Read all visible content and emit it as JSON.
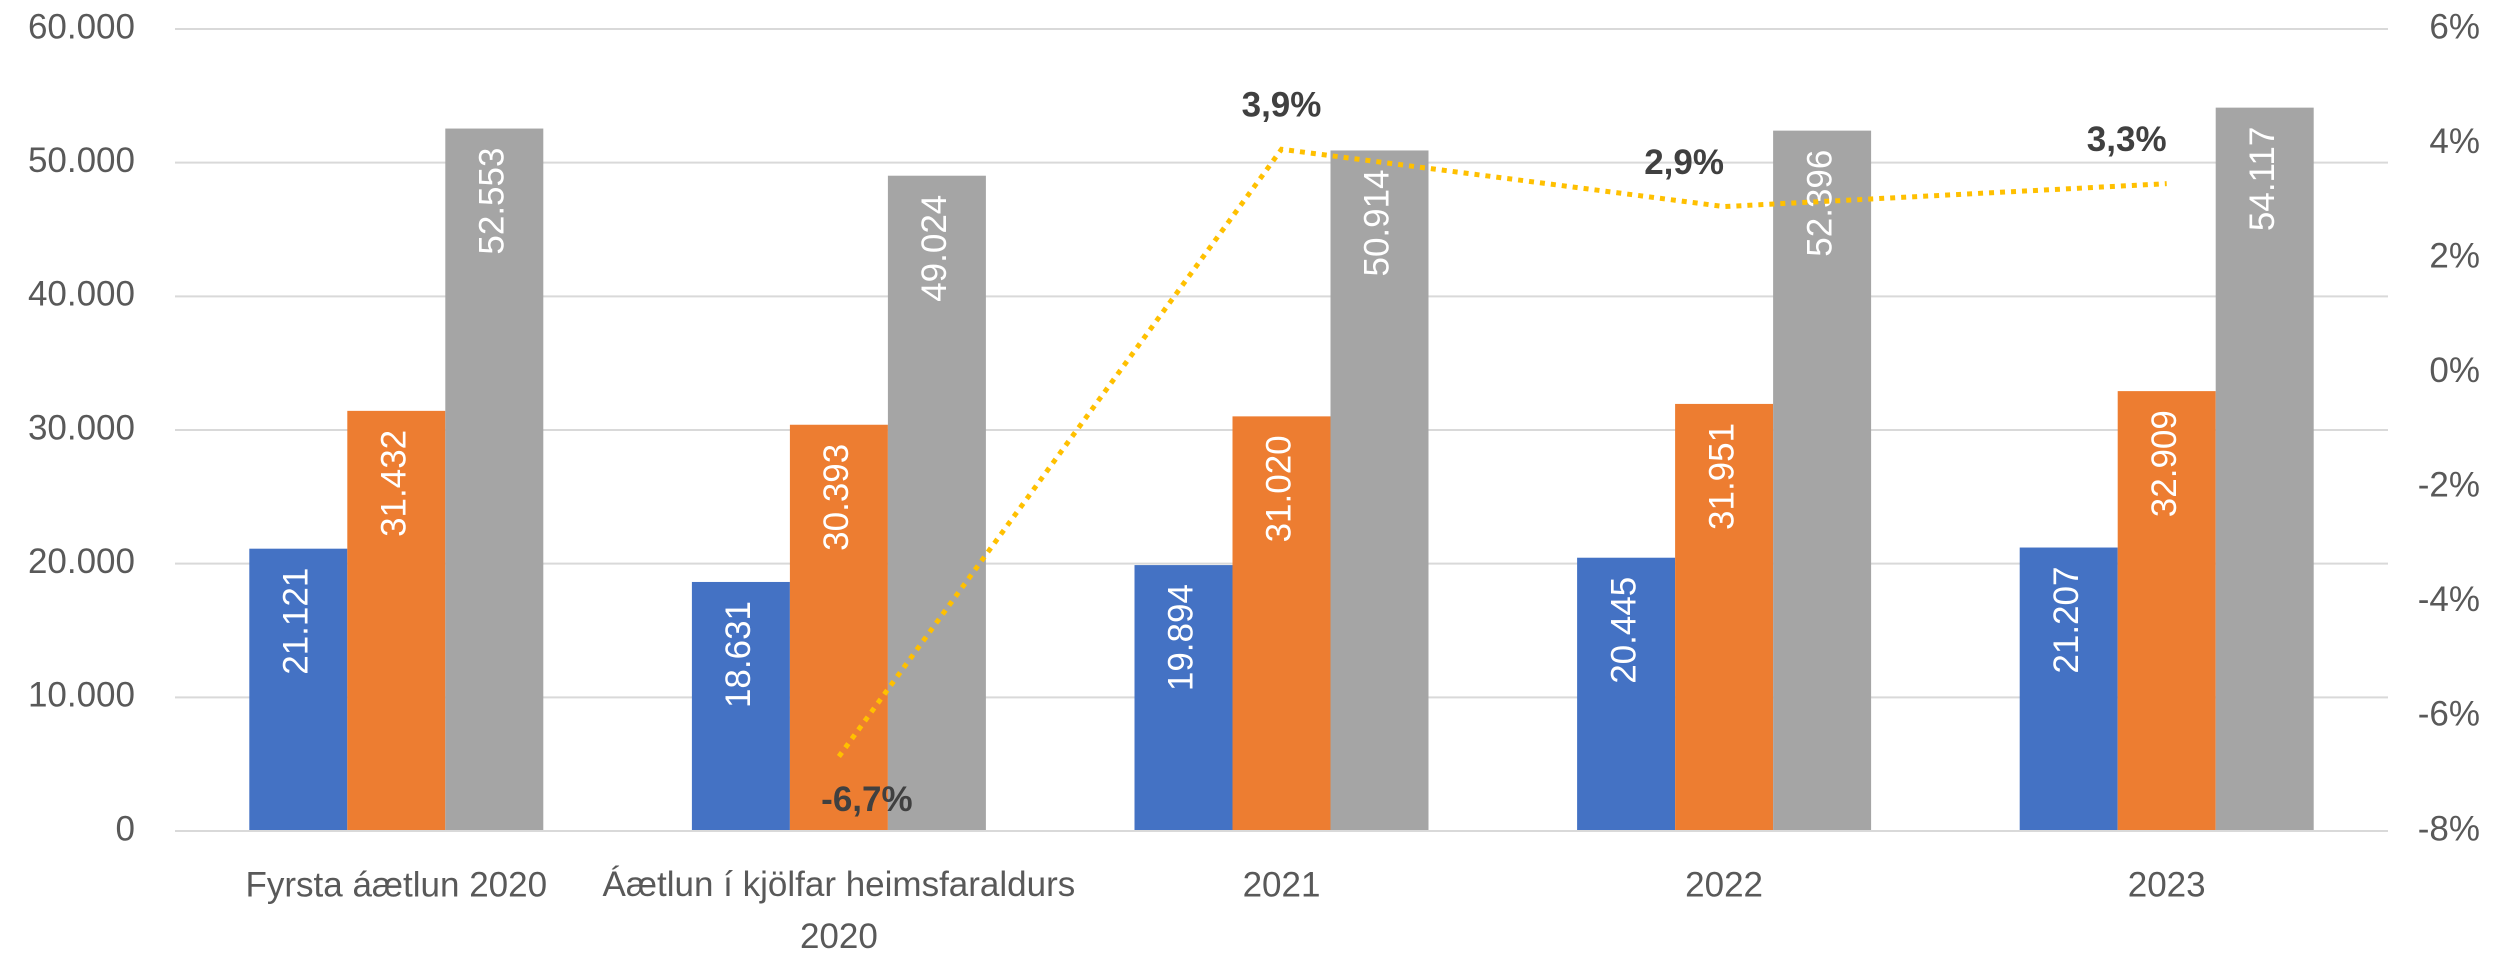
{
  "chart_data": {
    "type": "bar",
    "categories": [
      "Fyrsta áætlun 2020",
      "Áætlun í kjölfar heimsfaraldurs 2020",
      "2021",
      "2022",
      "2023"
    ],
    "series": [
      {
        "color": "#4472c4",
        "values": [
          21121,
          18631,
          19894,
          20445,
          21207
        ],
        "value_labels": [
          "21.121",
          "18.631",
          "19.894",
          "20.445",
          "21.207"
        ]
      },
      {
        "color": "#ed7d31",
        "values": [
          31432,
          30393,
          31020,
          31951,
          32909
        ],
        "value_labels": [
          "31.432",
          "30.393",
          "31.020",
          "31.951",
          "32.909"
        ]
      },
      {
        "color": "#a5a5a5",
        "values": [
          52553,
          49024,
          50914,
          52396,
          54117
        ],
        "value_labels": [
          "52.553",
          "49.024",
          "50.914",
          "52.396",
          "54.117"
        ]
      },
      {
        "type": "line",
        "axis": "y2",
        "color": "#ffc000",
        "values": [
          null,
          -6.7,
          3.9,
          2.9,
          3.3
        ],
        "value_labels": [
          null,
          "-6,7%",
          "3,9%",
          "2,9%",
          "3,3%"
        ]
      }
    ],
    "ylim": [
      0,
      60000
    ],
    "yticks": [
      0,
      {
        "value": 10000,
        "label": "10.000"
      },
      {
        "value": 20000,
        "label": "20.000"
      },
      {
        "value": 30000,
        "label": "30.000"
      },
      {
        "value": 40000,
        "label": "40.000"
      },
      {
        "value": 50000,
        "label": "50.000"
      },
      {
        "value": 60000,
        "label": "60.000"
      }
    ],
    "y2lim": [
      -8,
      6
    ],
    "y2ticks": [
      {
        "value": -8,
        "label": "-8%"
      },
      {
        "value": -6,
        "label": "-6%"
      },
      {
        "value": -4,
        "label": "-4%"
      },
      {
        "value": -2,
        "label": "-2%"
      },
      {
        "value": 0,
        "label": "0%"
      },
      {
        "value": 2,
        "label": "2%"
      },
      {
        "value": 4,
        "label": "4%"
      },
      {
        "value": 6,
        "label": "6%"
      }
    ],
    "grid": true
  }
}
